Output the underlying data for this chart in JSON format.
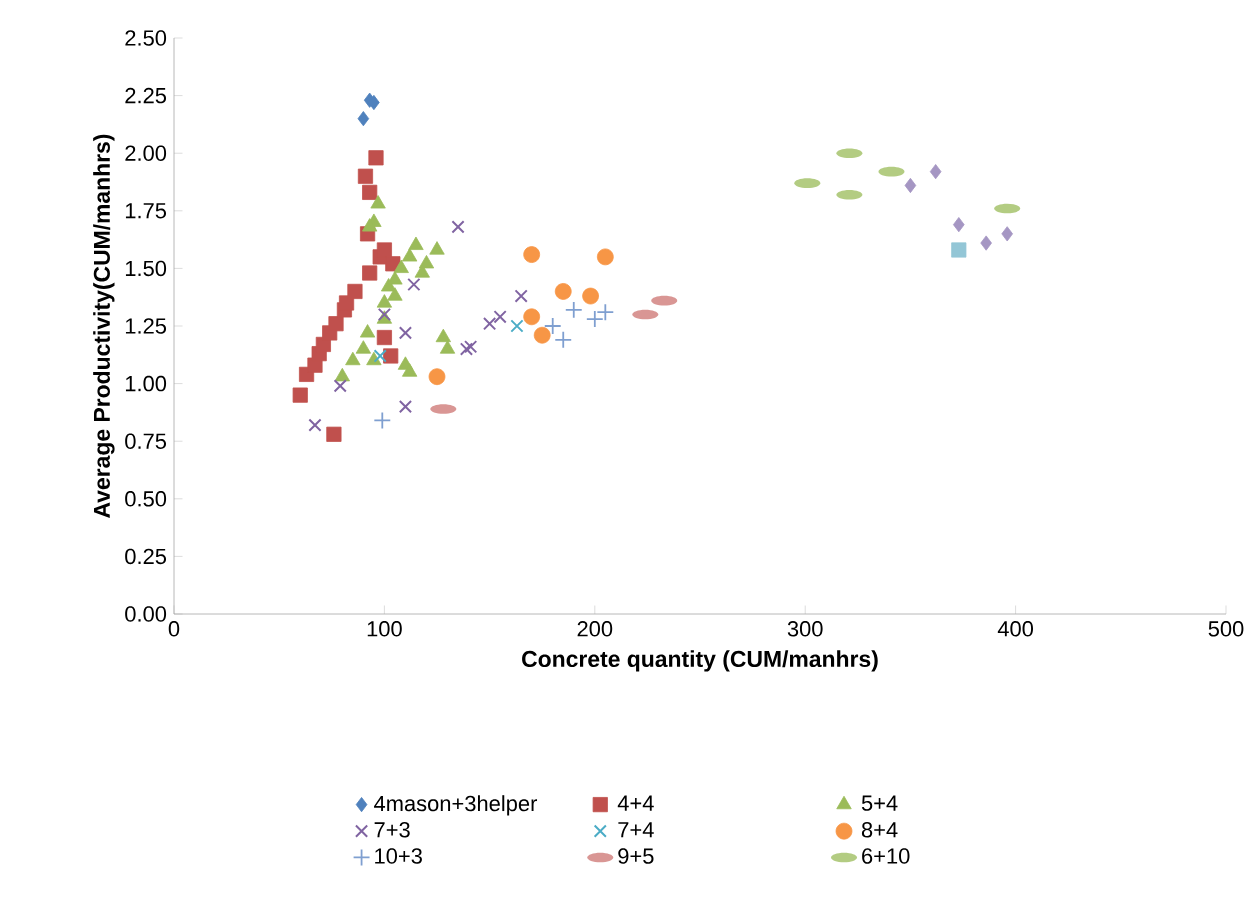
{
  "chart_data": {
    "type": "scatter",
    "xlabel": "Concrete quantity (CUM/manhrs)",
    "ylabel": "Average Productivity(CUM/manhrs)",
    "xlim": [
      0,
      500
    ],
    "xticks": [
      0,
      100,
      200,
      300,
      400,
      500
    ],
    "ylim": [
      0,
      2.5
    ],
    "yticks": [
      {
        "value": 0,
        "label": "0.00"
      },
      {
        "value": 0.25,
        "label": "0.25"
      },
      {
        "value": 0.5,
        "label": "0.50"
      },
      {
        "value": 0.75,
        "label": "0.75"
      },
      {
        "value": 1,
        "label": "1.00"
      },
      {
        "value": 1.25,
        "label": "1.25"
      },
      {
        "value": 1.5,
        "label": "1.50"
      },
      {
        "value": 1.75,
        "label": "1.75"
      },
      {
        "value": 2,
        "label": "2.00"
      },
      {
        "value": 2.25,
        "label": "2.25"
      },
      {
        "value": 2.5,
        "label": "2.50"
      }
    ],
    "grid": false,
    "legend": "bottom",
    "series": [
      {
        "name": "4mason+3helper",
        "color": "#4f81bd",
        "marker": "diamond",
        "x": [
          93,
          95,
          90
        ],
        "values": [
          2.23,
          2.22,
          2.15
        ]
      },
      {
        "name": "4+4",
        "color": "#c0504d",
        "marker": "square",
        "x": [
          60,
          63,
          67,
          69,
          71,
          74,
          77,
          81,
          82,
          86,
          93,
          98,
          100,
          76,
          91,
          93,
          96,
          92,
          103,
          100,
          104
        ],
        "values": [
          0.95,
          1.04,
          1.08,
          1.13,
          1.17,
          1.22,
          1.26,
          1.32,
          1.35,
          1.4,
          1.48,
          1.55,
          1.58,
          0.78,
          1.9,
          1.83,
          1.98,
          1.65,
          1.12,
          1.2,
          1.52
        ]
      },
      {
        "name": "5+4",
        "color": "#9bbb59",
        "marker": "triangle",
        "x": [
          80,
          85,
          90,
          92,
          95,
          97,
          100,
          102,
          105,
          108,
          112,
          115,
          118,
          120,
          125,
          128,
          130,
          110,
          112,
          95,
          100,
          105,
          93
        ],
        "values": [
          1.03,
          1.1,
          1.15,
          1.22,
          1.7,
          1.78,
          1.35,
          1.42,
          1.45,
          1.5,
          1.55,
          1.6,
          1.48,
          1.52,
          1.58,
          1.2,
          1.15,
          1.08,
          1.05,
          1.1,
          1.28,
          1.38,
          1.68
        ]
      },
      {
        "name": "7+3",
        "color": "#8064a2",
        "marker": "cross",
        "x": [
          67,
          79,
          110,
          110,
          114,
          135,
          139,
          141,
          150,
          155,
          165,
          100
        ],
        "values": [
          0.82,
          0.99,
          0.9,
          1.22,
          1.43,
          1.68,
          1.15,
          1.16,
          1.26,
          1.29,
          1.38,
          1.3
        ]
      },
      {
        "name": "7+4",
        "color": "#4bacc6",
        "marker": "cross",
        "x": [
          98,
          163
        ],
        "values": [
          1.12,
          1.25
        ]
      },
      {
        "name": "8+4",
        "color": "#f79646",
        "marker": "circle",
        "x": [
          170,
          205,
          185,
          198,
          170,
          175,
          125
        ],
        "values": [
          1.56,
          1.55,
          1.4,
          1.38,
          1.29,
          1.21,
          1.03
        ]
      },
      {
        "name": "10+3",
        "color": "#7f9fd0",
        "marker": "plus",
        "x": [
          99,
          180,
          185,
          190,
          200,
          205
        ],
        "values": [
          0.84,
          1.25,
          1.19,
          1.32,
          1.28,
          1.31
        ]
      },
      {
        "name": "9+5",
        "color": "#d99694",
        "x": [
          128,
          224,
          233
        ],
        "values": [
          0.89,
          1.3,
          1.36
        ]
      },
      {
        "name": "6+10",
        "color": "#b3cc82",
        "x": [
          301,
          321,
          321,
          341,
          396
        ],
        "values": [
          1.87,
          2.0,
          1.82,
          1.92,
          1.76
        ]
      },
      {
        "color": "#a596c3",
        "marker": "diamond",
        "x": [
          350,
          362,
          373,
          386,
          396
        ],
        "values": [
          1.86,
          1.92,
          1.69,
          1.61,
          1.65
        ]
      },
      {
        "color": "#93c6d6",
        "marker": "square",
        "x": [
          373
        ],
        "values": [
          1.58
        ]
      }
    ]
  }
}
